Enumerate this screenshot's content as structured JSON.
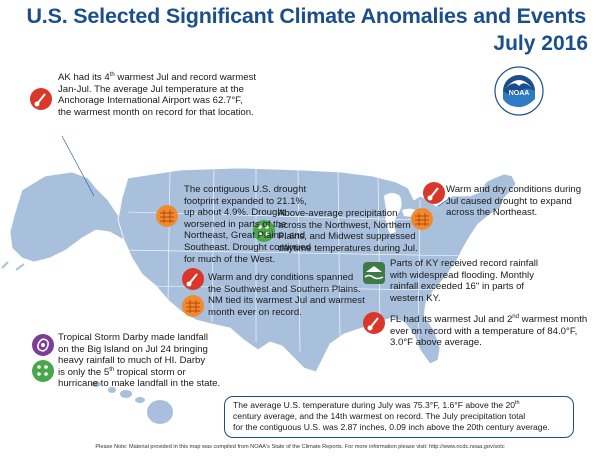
{
  "header": {
    "title": "U.S. Selected Significant Climate Anomalies and Events",
    "subtitle": "July 2016"
  },
  "logo": {
    "text": "NOAA",
    "ring_text_top": "NATIONAL OCEANIC AND ATMOSPHERIC ADMINISTRATION",
    "ring_text_bottom": "U.S. DEPARTMENT OF COMMERCE"
  },
  "annotations": {
    "alaska": {
      "line1_pre": "AK had its 4",
      "line1_sup": "th",
      "line1_post": " warmest Jul and record warmest",
      "line2": "Jan-Jul. The average Jul temperature at the",
      "line3": "Anchorage International Airport was 62.7°F,",
      "line4": "the warmest month on record for that location.",
      "icon": "thermometer-warm-icon"
    },
    "drought": {
      "lines": [
        "The contiguous U.S. drought",
        "footprint expanded to 21.1%,",
        "up about 4.9%. Drought",
        "worsened in parts of the",
        "Northeast, Great Plains, and",
        "Southeast. Drought continued",
        "for much of the West."
      ],
      "icon": "drought-icon"
    },
    "midwest": {
      "lines": [
        "Above-average precipitation",
        "across the Northwest, Northern",
        "Plains, and Midwest suppressed",
        "daytime temperatures during Jul."
      ],
      "icon": "precipitation-icon"
    },
    "northeast": {
      "lines": [
        "Warm and dry conditions during",
        "Jul caused drought to expand",
        "across the Northeast."
      ],
      "icons": [
        "thermometer-warm-icon",
        "drought-icon"
      ]
    },
    "southwest": {
      "lines": [
        "Warm and dry conditions spanned",
        "the Southwest and Southern Plains.",
        "NM tied its warmest Jul and warmest",
        "month ever on record."
      ],
      "icons": [
        "thermometer-warm-icon",
        "drought-icon"
      ]
    },
    "kentucky": {
      "lines": [
        "Parts of KY received record rainfall",
        "with widespread flooding. Monthly",
        "rainfall exceeded 16\" in parts of",
        "western KY."
      ],
      "icon": "flood-icon"
    },
    "florida": {
      "line1_pre": "FL had its warmest Jul and 2",
      "line1_sup": "nd",
      "line1_post": " warmest month",
      "line2": "ever on record with a temperature of 84.0°F,",
      "line3": "3.0°F above average.",
      "icon": "thermometer-warm-icon"
    },
    "hawaii": {
      "line1": "Tropical Storm Darby made landfall",
      "line2": "on the Big Island on Jul 24 bringing",
      "line3": "heavy rainfall to much of HI. Darby",
      "line4_pre": "is only the 5",
      "line4_sup": "th",
      "line4_post": " tropical storm or",
      "line5": "hurricane to make landfall in the state.",
      "icons": [
        "tropical-storm-icon",
        "precipitation-icon"
      ]
    }
  },
  "summary": {
    "line1_pre": "The average U.S. temperature during July was 75.3°F, 1.6°F above the 20",
    "line1_sup": "th",
    "line2": "century average, and the 14th warmest on record.  The July precipitation total",
    "line3": "for the contiguous U.S. was 2.87 inches, 0.09 inch above the 20th century average."
  },
  "footnote": "Please Note: Material provided in this map was compiled from NOAA's State of the Climate Reports. For more information please visit: http://www.ncdc.noaa.gov/sotc",
  "colors": {
    "title": "#1b4f8c",
    "map_fill": "#a9c0dd",
    "map_stroke": "#ffffff",
    "warm_icon": "#d8372a",
    "drought_icon": "#f08a2e",
    "precip_icon": "#4aa64a",
    "flood_icon": "#3e7a45",
    "storm_icon": "#7d3c98"
  }
}
